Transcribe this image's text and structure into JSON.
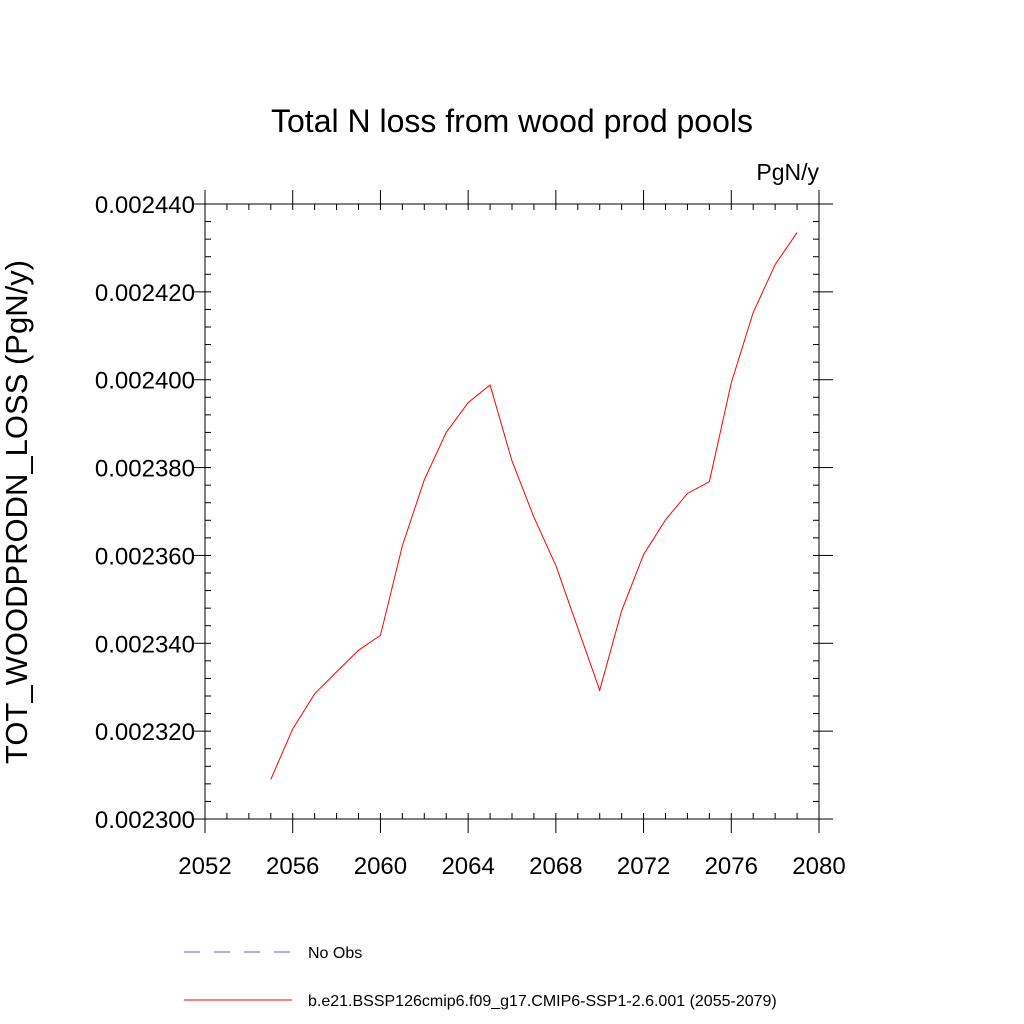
{
  "chart_data": {
    "type": "line",
    "title": "Total N loss from wood prod pools",
    "units": "PgN/y",
    "ylabel": "TOT_WOODPRODN_LOSS  (PgN/y)",
    "xlabel": "",
    "xlim": [
      2052,
      2080
    ],
    "ylim": [
      0.0023,
      0.00244
    ],
    "xticks": [
      2052,
      2056,
      2060,
      2064,
      2068,
      2072,
      2076,
      2080
    ],
    "xtick_labels": [
      "2052",
      "2056",
      "2060",
      "2064",
      "2068",
      "2072",
      "2076",
      "2080"
    ],
    "yticks": [
      0.0023,
      0.00232,
      0.00234,
      0.00236,
      0.00238,
      0.0024,
      0.00242,
      0.00244
    ],
    "ytick_labels": [
      "0.002300",
      "0.002320",
      "0.002340",
      "0.002360",
      "0.002380",
      "0.002400",
      "0.002420",
      "0.002440"
    ],
    "grid": false,
    "legend_position": "bottom",
    "series": [
      {
        "name": "b.e21.BSSP126cmip6.f09_g17.CMIP6-SSP1-2.6.001 (2055-2079)",
        "color": "#ff0000",
        "dash": "solid",
        "x": [
          2055,
          2056,
          2057,
          2058,
          2059,
          2060,
          2061,
          2062,
          2063,
          2064,
          2065,
          2066,
          2067,
          2068,
          2069,
          2070,
          2071,
          2072,
          2073,
          2074,
          2075,
          2076,
          2077,
          2078,
          2079
        ],
        "y": [
          0.002309,
          0.0023205,
          0.0023285,
          0.0023335,
          0.0023384,
          0.0023418,
          0.0023622,
          0.0023772,
          0.002388,
          0.0023948,
          0.0023988,
          0.0023815,
          0.0023687,
          0.0023577,
          0.0023435,
          0.0023293,
          0.0023474,
          0.0023602,
          0.0023681,
          0.0023741,
          0.0023768,
          0.0023993,
          0.0024153,
          0.0024262,
          0.0024335
        ]
      }
    ],
    "legend": [
      {
        "label": "No Obs",
        "color": "#6a5acd",
        "dash": "dashed"
      },
      {
        "label": "b.e21.BSSP126cmip6.f09_g17.CMIP6-SSP1-2.6.001 (2055-2079)",
        "color": "#ff0000",
        "dash": "solid"
      }
    ]
  }
}
